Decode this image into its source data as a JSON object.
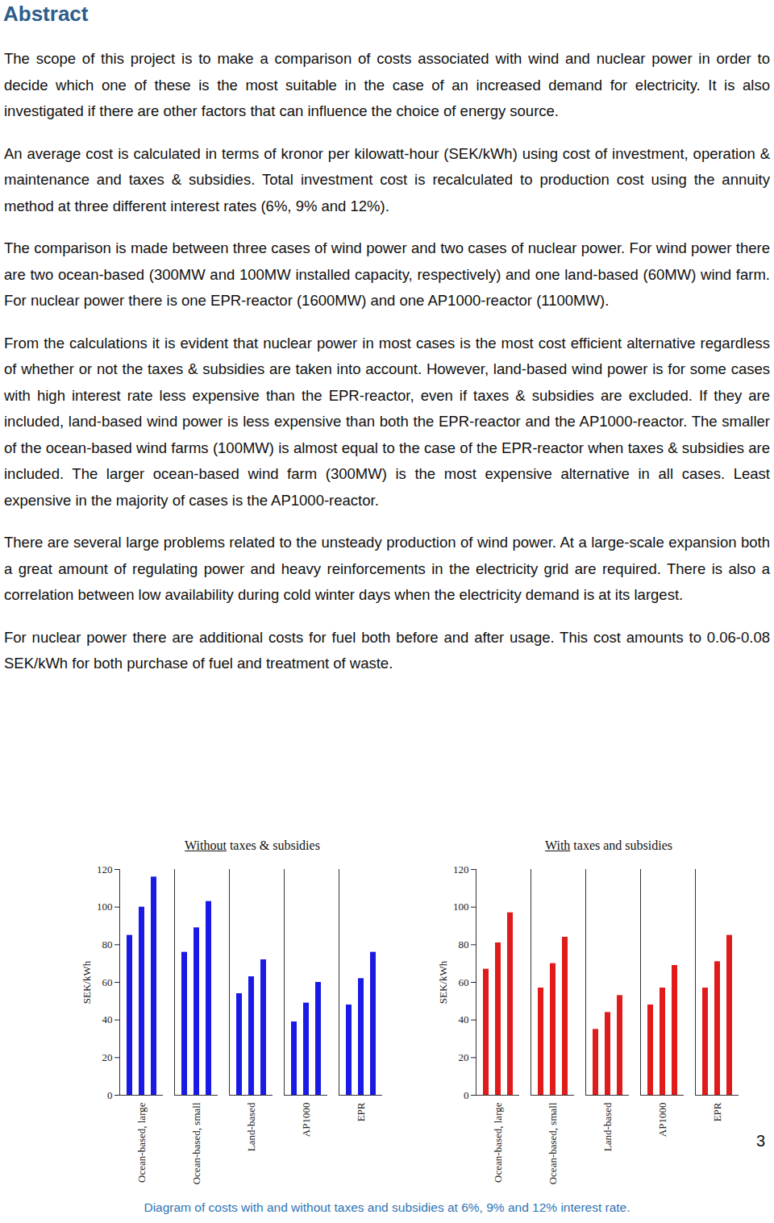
{
  "heading": "Abstract",
  "paragraphs": [
    "The scope of this project is to make a comparison of costs associated with wind and nuclear power in order to decide which one of these is the most suitable in the case of an increased demand for electricity. It is also investigated if there are other factors that can influence the choice of energy source.",
    "An average cost is calculated in terms of kronor per kilowatt-hour (SEK/kWh) using cost of investment, operation & maintenance and taxes & subsidies. Total investment cost is recalculated to production cost using the annuity method at three different interest rates (6%, 9% and 12%).",
    "The comparison is made between three cases of wind power and two cases of nuclear power. For wind power there are two ocean-based (300MW and 100MW installed capacity, respectively) and one land-based (60MW) wind farm. For nuclear power there is one EPR-reactor (1600MW) and one AP1000-reactor (1100MW).",
    "From the calculations it is evident that nuclear power in most cases is the most cost efficient alternative regardless of whether or not the taxes & subsidies are taken into account. However, land-based wind power is for some cases with high interest rate less expensive than the EPR-reactor, even if taxes & subsidies are excluded. If they are included, land-based wind power is less expensive than both the EPR-reactor and the AP1000-reactor. The smaller of the ocean-based wind farms (100MW) is almost equal to the case of the EPR-reactor when taxes & subsidies are included. The larger ocean-based wind farm (300MW) is the most expensive alternative in all cases. Least expensive in the majority of cases is the AP1000-reactor.",
    "There are several large problems related to the unsteady production of wind power. At a large-scale expansion both a great amount of regulating power and heavy reinforcements in the electricity grid are required. There is also a correlation between low availability during cold winter days when the electricity demand is at its largest.",
    "For nuclear power there are additional costs for fuel both before and after usage. This cost amounts to 0.06-0.08 SEK/kWh for both purchase of fuel and treatment of waste."
  ],
  "page_number": 3,
  "caption": "Diagram of costs with and without taxes and subsidies at 6%, 9% and 12% interest rate.",
  "chart_data": [
    {
      "type": "bar",
      "title": "Without taxes & subsidies",
      "ylabel": "SEK/kWh",
      "categories": [
        "Ocean-based, large",
        "Ocean-based, small",
        "Land-based",
        "AP1000",
        "EPR"
      ],
      "series": [
        {
          "color": "#1a1ae6",
          "values": [
            85,
            76,
            54,
            39,
            48
          ]
        },
        {
          "color": "#1a1ae6",
          "values": [
            100,
            89,
            63,
            49,
            62
          ]
        },
        {
          "color": "#1a1ae6",
          "values": [
            116,
            103,
            72,
            60,
            76
          ]
        }
      ],
      "ylim": [
        0,
        120
      ],
      "yticks": [
        0,
        20,
        40,
        60,
        80,
        100,
        120
      ],
      "grid": false
    },
    {
      "type": "bar",
      "title": "With taxes and subsidies",
      "ylabel": "SEK/kWh",
      "categories": [
        "Ocean-based, large",
        "Ocean-based, small",
        "Land-based",
        "AP1000",
        "EPR"
      ],
      "series": [
        {
          "color": "#e01b1b",
          "values": [
            67,
            57,
            35,
            48,
            57
          ]
        },
        {
          "color": "#e01b1b",
          "values": [
            81,
            70,
            44,
            57,
            71
          ]
        },
        {
          "color": "#e01b1b",
          "values": [
            97,
            84,
            53,
            69,
            85
          ]
        }
      ],
      "ylim": [
        0,
        120
      ],
      "yticks": [
        0,
        20,
        40,
        60,
        80,
        100,
        120
      ],
      "grid": false
    }
  ]
}
